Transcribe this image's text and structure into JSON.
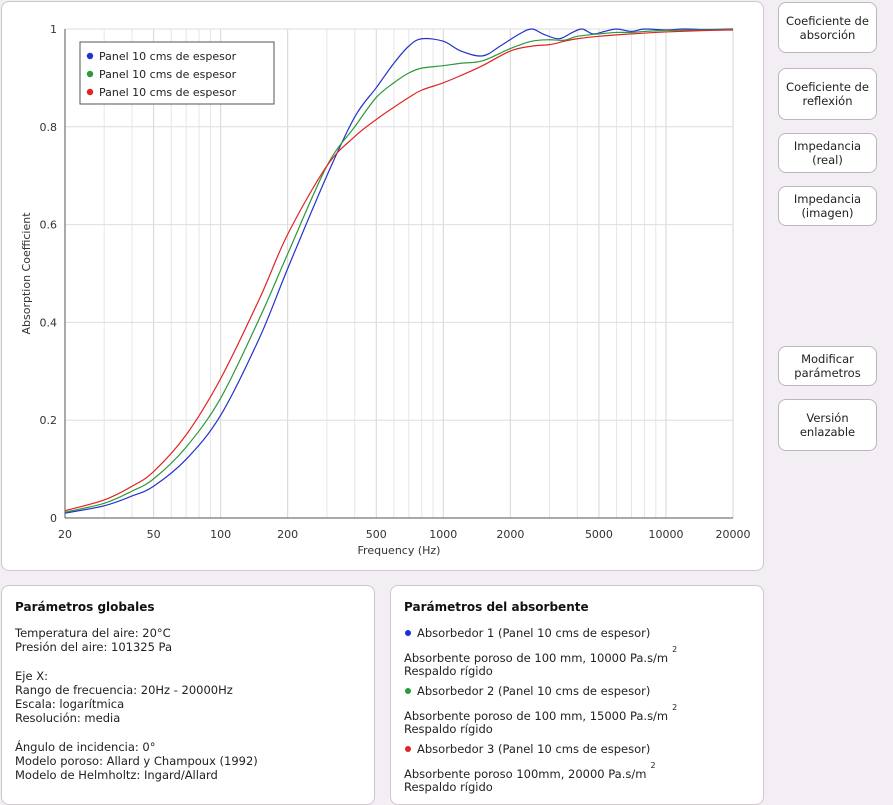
{
  "buttons": [
    {
      "label": "Coeficiente de\nabsorción",
      "active": true
    },
    {
      "label": "Coeficiente de\nreflexión",
      "active": false
    },
    {
      "label": "Impedancia\n(real)",
      "active": false
    },
    {
      "label": "Impedancia\n(imagen)",
      "active": false
    },
    {
      "label": "Modificar\nparámetros",
      "active": false
    },
    {
      "label": "Versión\nenlazable",
      "active": false
    }
  ],
  "chart_data": {
    "type": "line",
    "xlabel": "Frequency (Hz)",
    "ylabel": "Absorption Coefficient",
    "xscale": "log",
    "xlim": [
      20,
      20000
    ],
    "ylim": [
      0,
      1
    ],
    "grid": true,
    "legend_position": "top-left",
    "x_ticks": [
      20,
      50,
      100,
      200,
      500,
      1000,
      2000,
      5000,
      10000,
      20000
    ],
    "x_tick_labels": [
      "20",
      "50",
      "100",
      "200",
      "500",
      "1000",
      "2000",
      "5000",
      "10000",
      "20000"
    ],
    "y_ticks": [
      0,
      0.2,
      0.4,
      0.6,
      0.8,
      1
    ],
    "y_tick_labels": [
      "0",
      "0.2",
      "0.4",
      "0.6",
      "0.8",
      "1"
    ],
    "series": [
      {
        "name": "Panel 10 cms de espesor",
        "color": "#2233cc",
        "points": [
          [
            20,
            0.01
          ],
          [
            30,
            0.025
          ],
          [
            40,
            0.045
          ],
          [
            50,
            0.065
          ],
          [
            70,
            0.12
          ],
          [
            100,
            0.21
          ],
          [
            150,
            0.37
          ],
          [
            200,
            0.51
          ],
          [
            300,
            0.7
          ],
          [
            400,
            0.82
          ],
          [
            500,
            0.88
          ],
          [
            600,
            0.93
          ],
          [
            700,
            0.965
          ],
          [
            800,
            0.98
          ],
          [
            1000,
            0.975
          ],
          [
            1200,
            0.955
          ],
          [
            1500,
            0.945
          ],
          [
            1800,
            0.965
          ],
          [
            2200,
            0.99
          ],
          [
            2500,
            1.0
          ],
          [
            2800,
            0.99
          ],
          [
            3300,
            0.98
          ],
          [
            3800,
            0.993
          ],
          [
            4200,
            1.0
          ],
          [
            4700,
            0.99
          ],
          [
            5300,
            0.995
          ],
          [
            6000,
            1.0
          ],
          [
            7000,
            0.995
          ],
          [
            8000,
            1.0
          ],
          [
            10000,
            0.998
          ],
          [
            12000,
            1.0
          ],
          [
            15000,
            0.999
          ],
          [
            20000,
            1.0
          ]
        ]
      },
      {
        "name": "Panel 10 cms de espesor",
        "color": "#2a9a3a",
        "points": [
          [
            20,
            0.012
          ],
          [
            30,
            0.03
          ],
          [
            40,
            0.055
          ],
          [
            50,
            0.08
          ],
          [
            70,
            0.145
          ],
          [
            100,
            0.245
          ],
          [
            150,
            0.41
          ],
          [
            200,
            0.54
          ],
          [
            300,
            0.72
          ],
          [
            400,
            0.8
          ],
          [
            500,
            0.86
          ],
          [
            600,
            0.89
          ],
          [
            700,
            0.91
          ],
          [
            800,
            0.92
          ],
          [
            1000,
            0.925
          ],
          [
            1200,
            0.93
          ],
          [
            1500,
            0.935
          ],
          [
            2000,
            0.96
          ],
          [
            2500,
            0.975
          ],
          [
            3000,
            0.978
          ],
          [
            3500,
            0.977
          ],
          [
            4000,
            0.985
          ],
          [
            5000,
            0.99
          ],
          [
            6000,
            0.993
          ],
          [
            7000,
            0.993
          ],
          [
            8000,
            0.995
          ],
          [
            10000,
            0.997
          ],
          [
            15000,
            0.998
          ],
          [
            20000,
            0.999
          ]
        ]
      },
      {
        "name": "Panel 10 cms de espesor",
        "color": "#e02525",
        "points": [
          [
            20,
            0.015
          ],
          [
            30,
            0.037
          ],
          [
            40,
            0.065
          ],
          [
            50,
            0.095
          ],
          [
            70,
            0.17
          ],
          [
            100,
            0.285
          ],
          [
            150,
            0.45
          ],
          [
            200,
            0.58
          ],
          [
            300,
            0.72
          ],
          [
            400,
            0.78
          ],
          [
            500,
            0.815
          ],
          [
            600,
            0.84
          ],
          [
            700,
            0.86
          ],
          [
            800,
            0.875
          ],
          [
            1000,
            0.89
          ],
          [
            1200,
            0.905
          ],
          [
            1500,
            0.925
          ],
          [
            2000,
            0.955
          ],
          [
            2500,
            0.965
          ],
          [
            3000,
            0.968
          ],
          [
            3500,
            0.975
          ],
          [
            4000,
            0.98
          ],
          [
            5000,
            0.985
          ],
          [
            7000,
            0.99
          ],
          [
            10000,
            0.994
          ],
          [
            15000,
            0.997
          ],
          [
            20000,
            0.998
          ]
        ]
      }
    ]
  },
  "global_params": {
    "title": "Parámetros globales",
    "temperatura": "Temperatura del aire: 20°C",
    "presion": "Presión del aire: 101325 Pa",
    "eje_x": "Eje X:",
    "rango": "Rango de frecuencia: 20Hz - 20000Hz",
    "escala": "Escala: logarítmica",
    "resolucion": "Resolución: media",
    "angulo": "Ángulo de incidencia: 0°",
    "modelo_poroso": "Modelo poroso: Allard y Champoux (1992)",
    "modelo_helmholtz": "Modelo de Helmholtz: Ingard/Allard"
  },
  "absorber_params": {
    "title": "Parámetros del absorbente",
    "items": [
      {
        "label": "Absorbedor 1 (Panel 10 cms de espesor)",
        "desc": "Absorbente poroso de 100 mm, 10000 Pa.s/m",
        "sup": "2",
        "backing": "Respaldo rígido",
        "color": "#1a2fd6"
      },
      {
        "label": "Absorbedor 2 (Panel 10 cms de espesor)",
        "desc": "Absorbente poroso de 100 mm, 15000 Pa.s/m",
        "sup": "2",
        "backing": "Respaldo rígido",
        "color": "#2a9a3a"
      },
      {
        "label": "Absorbedor 3 (Panel 10 cms de espesor)",
        "desc": "Absorbente poroso 100mm, 20000 Pa.s/m",
        "sup": "2",
        "backing": "Respaldo rígido",
        "color": "#e02525"
      }
    ]
  }
}
